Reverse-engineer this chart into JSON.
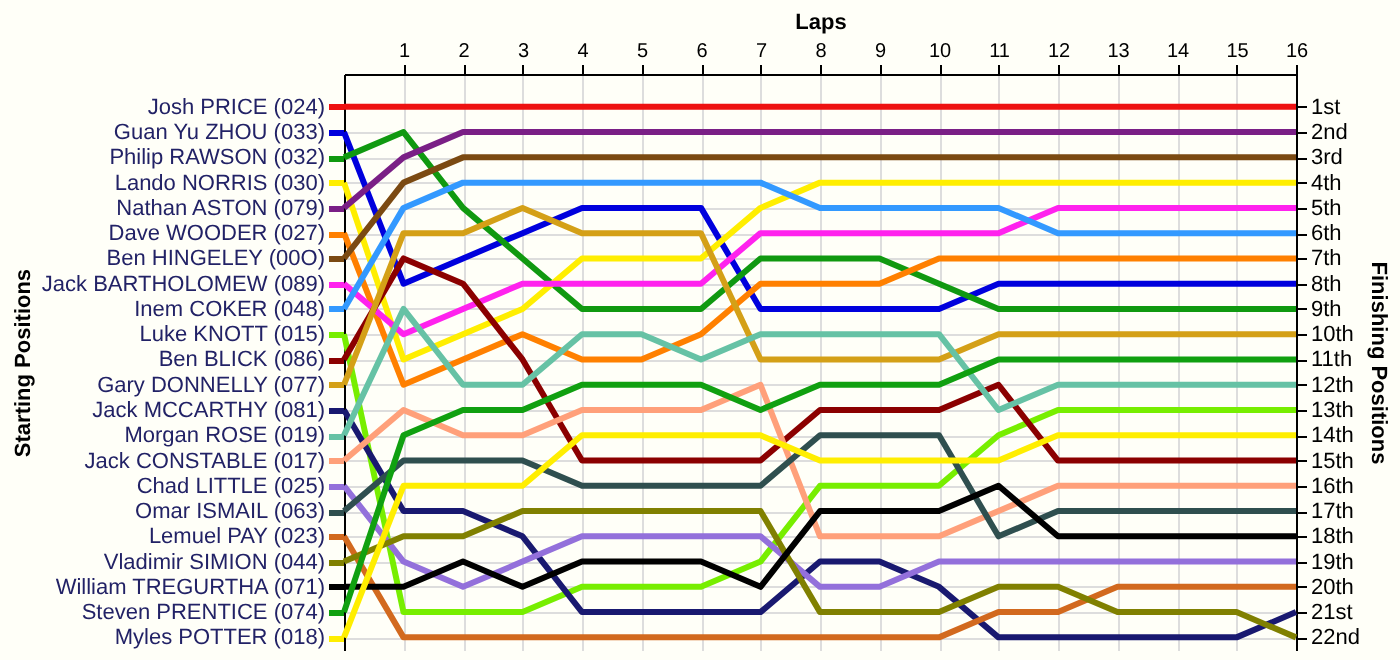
{
  "chart_data": {
    "type": "line",
    "xlabel": "Laps",
    "ylabel": "Finishing Positions",
    "annotations": [
      "Starting Positions"
    ],
    "x": [
      0,
      1,
      2,
      3,
      4,
      5,
      6,
      7,
      8,
      9,
      10,
      11,
      12,
      13,
      14,
      15,
      16
    ],
    "xlim": [
      0,
      16
    ],
    "xticks": [
      1,
      2,
      3,
      4,
      5,
      6,
      7,
      8,
      9,
      10,
      11,
      12,
      13,
      14,
      15,
      16
    ],
    "ylim": [
      22.5,
      -0.3
    ],
    "yticks": [
      {
        "value": 1,
        "label": "1st"
      },
      {
        "value": 2,
        "label": "2nd"
      },
      {
        "value": 3,
        "label": "3rd"
      },
      {
        "value": 4,
        "label": "4th"
      },
      {
        "value": 5,
        "label": "5th"
      },
      {
        "value": 6,
        "label": "6th"
      },
      {
        "value": 7,
        "label": "7th"
      },
      {
        "value": 8,
        "label": "8th"
      },
      {
        "value": 9,
        "label": "9th"
      },
      {
        "value": 10,
        "label": "10th"
      },
      {
        "value": 11,
        "label": "11th"
      },
      {
        "value": 12,
        "label": "12th"
      },
      {
        "value": 13,
        "label": "13th"
      },
      {
        "value": 14,
        "label": "14th"
      },
      {
        "value": 15,
        "label": "15th"
      },
      {
        "value": 16,
        "label": "16th"
      },
      {
        "value": 17,
        "label": "17th"
      },
      {
        "value": 18,
        "label": "18th"
      },
      {
        "value": 19,
        "label": "19th"
      },
      {
        "value": 20,
        "label": "20th"
      },
      {
        "value": 21,
        "label": "21st"
      },
      {
        "value": 22,
        "label": "22nd"
      }
    ],
    "grid": true,
    "legend": "left",
    "marker": "none",
    "line_style": "solid",
    "series": [
      {
        "name": "Josh PRICE (024)",
        "color": "#ee1111",
        "values": [
          1,
          1,
          1,
          1,
          1,
          1,
          1,
          1,
          1,
          1,
          1,
          1,
          1,
          1,
          1,
          1,
          1
        ]
      },
      {
        "name": "Guan Yu ZHOU (033)",
        "color": "#0000dd",
        "values": [
          2,
          8,
          7,
          6,
          5,
          5,
          5,
          9,
          9,
          9,
          9,
          8,
          8,
          8,
          8,
          8,
          8
        ]
      },
      {
        "name": "Philip RAWSON (032)",
        "color": "#109910",
        "values": [
          3,
          2,
          5,
          7,
          9,
          9,
          9,
          7,
          7,
          7,
          8,
          9,
          9,
          9,
          9,
          9,
          9
        ]
      },
      {
        "name": "Lando NORRIS (030)",
        "color": "#ffee00",
        "values": [
          4,
          11,
          10,
          9,
          7,
          7,
          7,
          5,
          4,
          4,
          4,
          4,
          4,
          4,
          4,
          4,
          4
        ]
      },
      {
        "name": "Nathan ASTON (079)",
        "color": "#7a1f86",
        "values": [
          5,
          3,
          2,
          2,
          2,
          2,
          2,
          2,
          2,
          2,
          2,
          2,
          2,
          2,
          2,
          2,
          2
        ]
      },
      {
        "name": "Dave WOODER (027)",
        "color": "#ff8000",
        "values": [
          6,
          12,
          11,
          10,
          11,
          11,
          10,
          8,
          8,
          8,
          7,
          7,
          7,
          7,
          7,
          7,
          7
        ]
      },
      {
        "name": "Ben HINGELEY (00O)",
        "color": "#7b4a12",
        "values": [
          7,
          4,
          3,
          3,
          3,
          3,
          3,
          3,
          3,
          3,
          3,
          3,
          3,
          3,
          3,
          3,
          3
        ]
      },
      {
        "name": "Jack BARTHOLOMEW (089)",
        "color": "#ff22ee",
        "values": [
          8,
          10,
          9,
          8,
          8,
          8,
          8,
          6,
          6,
          6,
          6,
          6,
          5,
          5,
          5,
          5,
          5
        ]
      },
      {
        "name": "Inem COKER (048)",
        "color": "#3399ff",
        "values": [
          9,
          5,
          4,
          4,
          4,
          4,
          4,
          4,
          5,
          5,
          5,
          5,
          6,
          6,
          6,
          6,
          6
        ]
      },
      {
        "name": "Luke KNOTT (015)",
        "color": "#77ee00",
        "values": [
          10,
          21,
          21,
          21,
          20,
          20,
          20,
          19,
          16,
          16,
          16,
          14,
          13,
          13,
          13,
          13,
          13
        ]
      },
      {
        "name": "Ben BLICK (086)",
        "color": "#8b0000",
        "values": [
          11,
          7,
          8,
          11,
          15,
          15,
          15,
          15,
          13,
          13,
          13,
          12,
          15,
          15,
          15,
          15,
          15
        ]
      },
      {
        "name": "Gary DONNELLY (077)",
        "color": "#d4a017",
        "values": [
          12,
          6,
          6,
          5,
          6,
          6,
          6,
          11,
          11,
          11,
          11,
          10,
          10,
          10,
          10,
          10,
          10
        ]
      },
      {
        "name": "Jack MCCARTHY (081)",
        "color": "#191970",
        "values": [
          13,
          17,
          17,
          18,
          21,
          21,
          21,
          21,
          19,
          19,
          20,
          22,
          22,
          22,
          22,
          22,
          21
        ]
      },
      {
        "name": "Morgan ROSE (019)",
        "color": "#66c2a5",
        "values": [
          14,
          9,
          12,
          12,
          10,
          10,
          11,
          10,
          10,
          10,
          10,
          13,
          12,
          12,
          12,
          12,
          12
        ]
      },
      {
        "name": "Jack CONSTABLE (017)",
        "color": "#ffa07a",
        "values": [
          15,
          13,
          14,
          14,
          13,
          13,
          13,
          12,
          18,
          18,
          18,
          17,
          16,
          16,
          16,
          16,
          16
        ]
      },
      {
        "name": "Chad LITTLE (025)",
        "color": "#9370db",
        "values": [
          16,
          19,
          20,
          19,
          18,
          18,
          18,
          18,
          20,
          20,
          19,
          19,
          19,
          19,
          19,
          19,
          19
        ]
      },
      {
        "name": "Omar ISMAIL (063)",
        "color": "#2f4f4f",
        "values": [
          17,
          15,
          15,
          15,
          16,
          16,
          16,
          16,
          14,
          14,
          14,
          18,
          17,
          17,
          17,
          17,
          17
        ]
      },
      {
        "name": "Lemuel PAY (023)",
        "color": "#d2691e",
        "values": [
          18,
          22,
          22,
          22,
          22,
          22,
          22,
          22,
          22,
          22,
          22,
          21,
          21,
          20,
          20,
          20,
          20
        ]
      },
      {
        "name": "Vladimir SIMION (044)",
        "color": "#808000",
        "values": [
          19,
          18,
          18,
          17,
          17,
          17,
          17,
          17,
          21,
          21,
          21,
          20,
          20,
          21,
          21,
          21,
          22
        ]
      },
      {
        "name": "William TREGURTHA (071)",
        "color": "#000000",
        "values": [
          20,
          20,
          19,
          20,
          19,
          19,
          19,
          20,
          17,
          17,
          17,
          16,
          18,
          18,
          18,
          18,
          18
        ]
      },
      {
        "name": "Steven PRENTICE (074)",
        "color": "#10a010",
        "values": [
          21,
          14,
          13,
          13,
          12,
          12,
          12,
          13,
          12,
          12,
          12,
          11,
          11,
          11,
          11,
          11,
          11
        ]
      },
      {
        "name": "Myles POTTER (018)",
        "color": "#ffee00",
        "values": [
          22,
          16,
          16,
          16,
          14,
          14,
          14,
          14,
          15,
          15,
          15,
          15,
          14,
          14,
          14,
          14,
          14
        ]
      }
    ]
  }
}
